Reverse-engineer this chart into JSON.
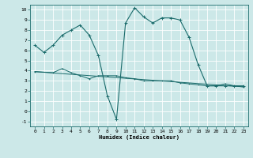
{
  "xlabel": "Humidex (Indice chaleur)",
  "bg_color": "#cce8e8",
  "grid_color": "#ffffff",
  "line_color": "#1a6b6b",
  "xlim": [
    -0.5,
    23.5
  ],
  "ylim": [
    -1.5,
    10.5
  ],
  "yticks": [
    -1,
    0,
    1,
    2,
    3,
    4,
    5,
    6,
    7,
    8,
    9,
    10
  ],
  "xticks": [
    0,
    1,
    2,
    3,
    4,
    5,
    6,
    7,
    8,
    9,
    10,
    11,
    12,
    13,
    14,
    15,
    16,
    17,
    18,
    19,
    20,
    21,
    22,
    23
  ],
  "curve1_x": [
    0,
    1,
    2,
    3,
    4,
    5,
    6,
    7,
    8,
    9,
    10,
    11,
    12,
    13,
    14,
    15,
    16,
    17,
    18,
    19,
    20,
    21,
    22,
    23
  ],
  "curve1_y": [
    6.5,
    5.8,
    6.5,
    7.5,
    8.0,
    8.5,
    7.5,
    5.5,
    1.5,
    -0.8,
    8.7,
    10.2,
    9.3,
    8.7,
    9.2,
    9.2,
    9.0,
    7.3,
    4.6,
    2.5,
    2.5,
    2.5,
    2.5,
    2.5
  ],
  "curve2_x": [
    0,
    2,
    3,
    4,
    5,
    6,
    7,
    8,
    9,
    10,
    11,
    12,
    13,
    14,
    15,
    16,
    17,
    18,
    19,
    20,
    21,
    22,
    23
  ],
  "curve2_y": [
    3.9,
    3.8,
    4.2,
    3.8,
    3.5,
    3.2,
    3.5,
    3.5,
    3.5,
    3.3,
    3.2,
    3.0,
    3.0,
    3.0,
    3.0,
    2.8,
    2.7,
    2.6,
    2.5,
    2.5,
    2.7,
    2.5,
    2.4
  ],
  "curve3_x": [
    0,
    23
  ],
  "curve3_y": [
    3.9,
    2.4
  ]
}
